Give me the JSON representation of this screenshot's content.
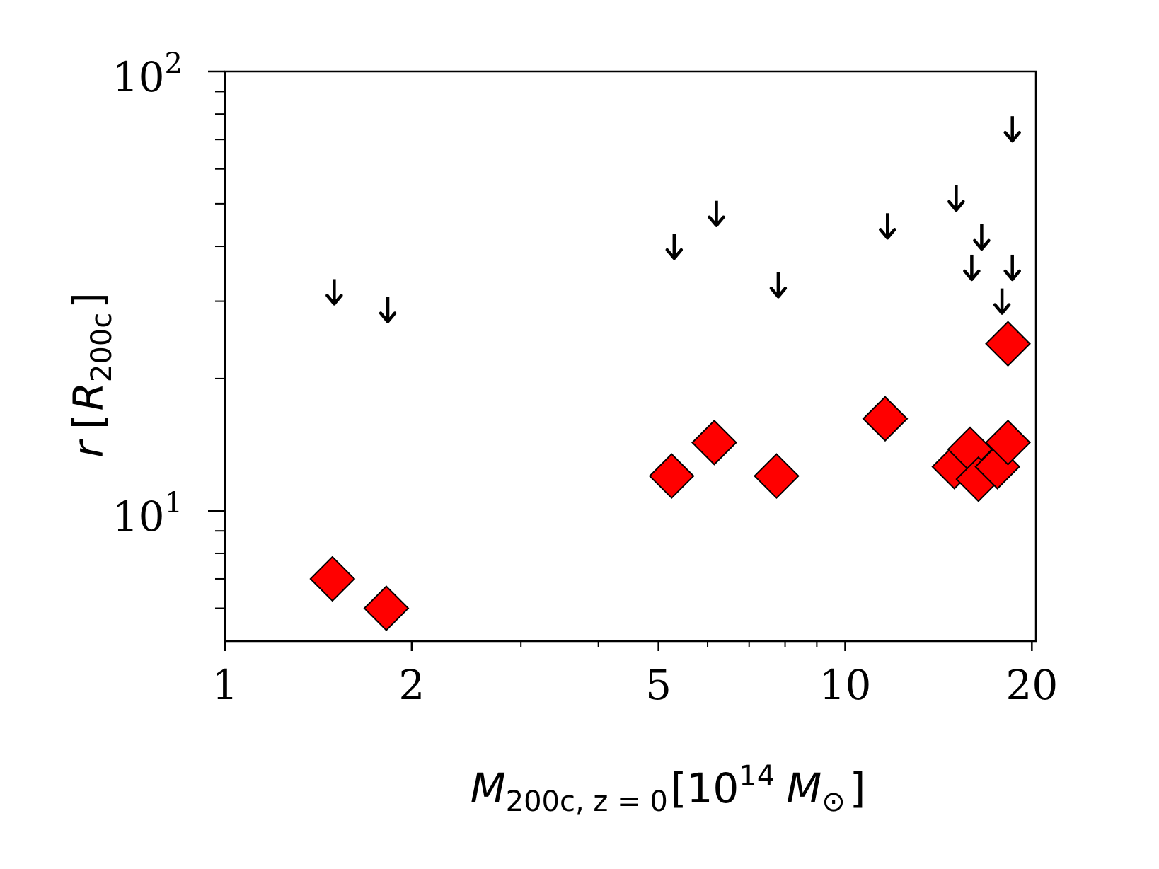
{
  "chart_data": {
    "type": "scatter",
    "title": "",
    "xlabel": {
      "main": "M",
      "sub": "200c, z = 0",
      "bracket_open": "[",
      "unit_base": "10",
      "unit_exp": "14",
      "unit_sym": "M",
      "unit_sub": "⊙",
      "bracket_close": "]"
    },
    "ylabel": {
      "main": "r",
      "bracket_open": "[",
      "unit_sym": "R",
      "unit_sub": "200c",
      "bracket_close": "]"
    },
    "xscale": "log",
    "yscale": "log",
    "xlim": [
      1,
      20.3
    ],
    "ylim": [
      5.05,
      100
    ],
    "grid": false,
    "x_ticks": [
      {
        "value": 1,
        "label": "1"
      },
      {
        "value": 2,
        "label": "2"
      },
      {
        "value": 5,
        "label": "5"
      },
      {
        "value": 10,
        "label": "10"
      },
      {
        "value": 20,
        "label": "20"
      }
    ],
    "y_ticks": [
      {
        "value": 10,
        "base": "10",
        "exp": "1"
      },
      {
        "value": 100,
        "base": "10",
        "exp": "2"
      }
    ],
    "series": [
      {
        "marker": "diamond",
        "color": "#ff0000",
        "edge_color": "#000000",
        "points": [
          {
            "x": 1.49,
            "y": 7.0
          },
          {
            "x": 1.82,
            "y": 6.0
          },
          {
            "x": 5.25,
            "y": 12.0
          },
          {
            "x": 6.15,
            "y": 14.3
          },
          {
            "x": 7.75,
            "y": 12.0
          },
          {
            "x": 11.6,
            "y": 16.2
          },
          {
            "x": 15.0,
            "y": 12.6
          },
          {
            "x": 15.9,
            "y": 13.8
          },
          {
            "x": 16.4,
            "y": 11.8
          },
          {
            "x": 17.6,
            "y": 12.6
          },
          {
            "x": 18.3,
            "y": 14.3
          },
          {
            "x": 18.3,
            "y": 24.0
          }
        ]
      },
      {
        "marker": "down-arrow",
        "color": "#000000",
        "points": [
          {
            "x": 1.5,
            "y": 31.5
          },
          {
            "x": 1.83,
            "y": 28.7
          },
          {
            "x": 5.3,
            "y": 40.0
          },
          {
            "x": 6.2,
            "y": 47.5
          },
          {
            "x": 7.8,
            "y": 32.7
          },
          {
            "x": 11.7,
            "y": 44.5
          },
          {
            "x": 15.1,
            "y": 51.5
          },
          {
            "x": 16.0,
            "y": 35.8
          },
          {
            "x": 16.6,
            "y": 42.0
          },
          {
            "x": 17.9,
            "y": 30.0
          },
          {
            "x": 18.6,
            "y": 35.8
          },
          {
            "x": 18.6,
            "y": 74.0
          }
        ]
      }
    ]
  }
}
